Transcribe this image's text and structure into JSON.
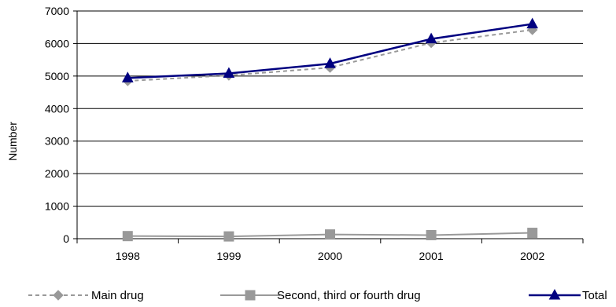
{
  "chart_data": {
    "type": "line",
    "title": "",
    "xlabel": "",
    "ylabel": "Number",
    "categories": [
      "1998",
      "1999",
      "2000",
      "2001",
      "2002"
    ],
    "ylim": [
      0,
      7000
    ],
    "yticks": [
      0,
      1000,
      2000,
      3000,
      4000,
      5000,
      6000,
      7000
    ],
    "grid": "horizontal",
    "legend": "bottom",
    "series": [
      {
        "name": "Main drug",
        "values": [
          4850,
          5020,
          5260,
          6020,
          6420
        ],
        "color": "#999999",
        "dash": "dashed",
        "marker": "diamond"
      },
      {
        "name": "Second, third or fourth drug",
        "values": [
          80,
          70,
          130,
          110,
          180
        ],
        "color": "#999999",
        "dash": "solid",
        "marker": "square"
      },
      {
        "name": "Total",
        "values": [
          4940,
          5080,
          5380,
          6140,
          6600
        ],
        "color": "#000080",
        "dash": "solid",
        "marker": "triangle"
      }
    ]
  }
}
